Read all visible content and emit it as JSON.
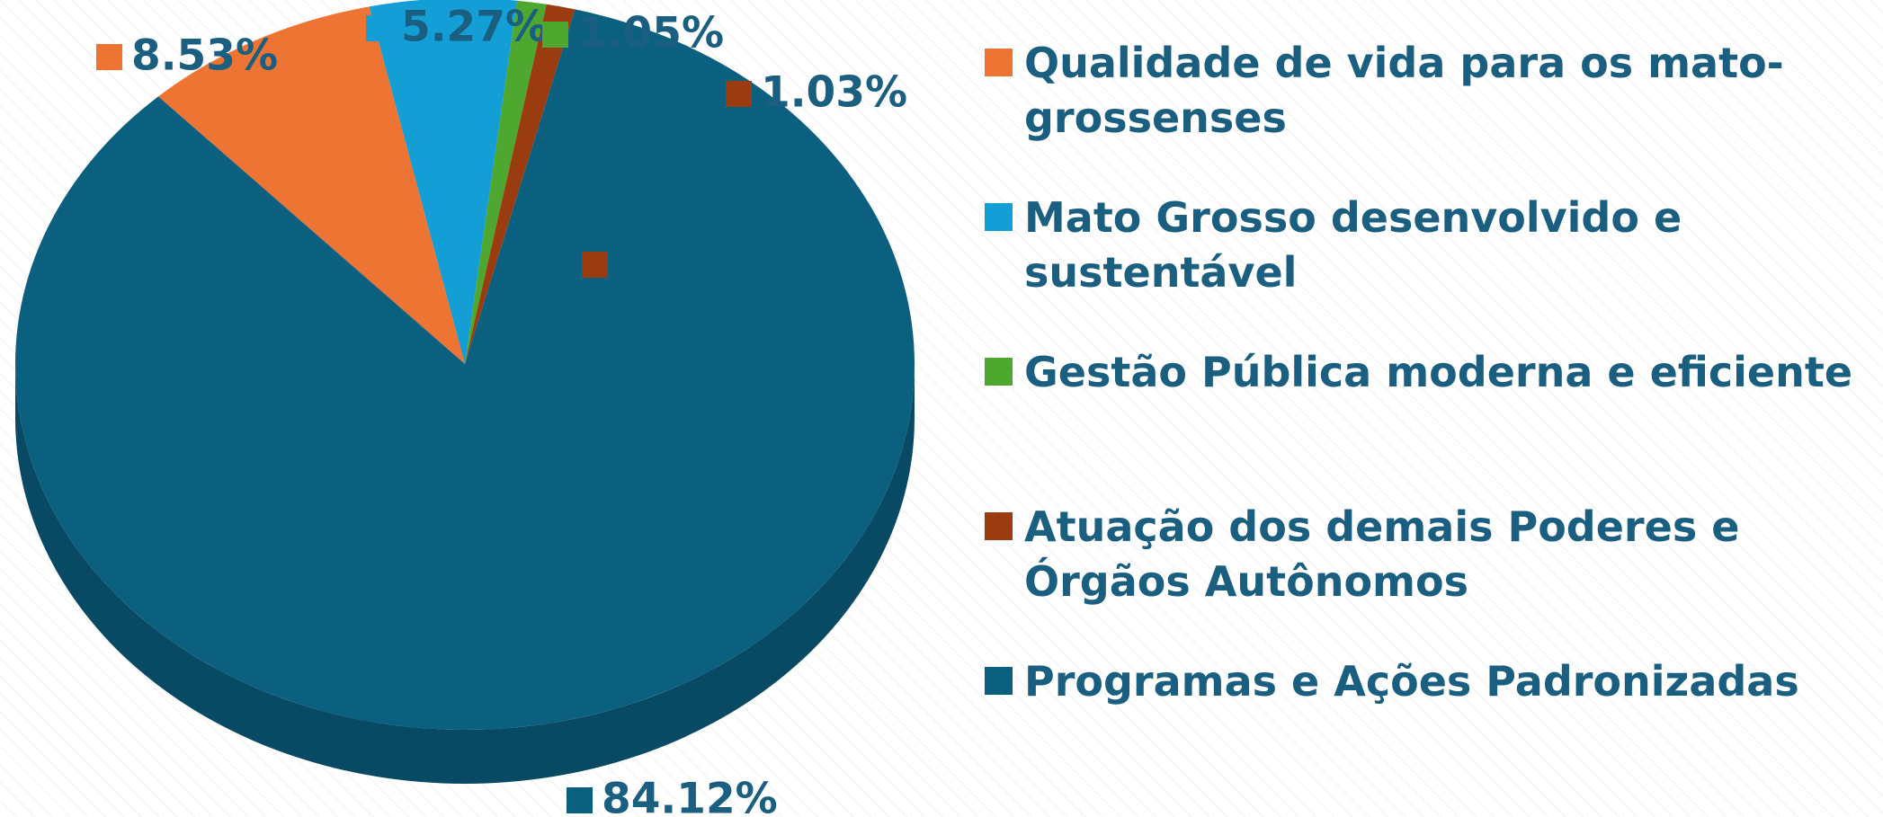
{
  "chart_data": {
    "type": "pie3d",
    "categories": [
      "Qualidade de vida para os mato-grossenses",
      "Mato Grosso desenvolvido e sustentável",
      "Gestão Pública moderna e eficiente",
      "Atuação dos demais Poderes e Órgãos Autônomos",
      "Programas e Ações Padronizadas"
    ],
    "values": [
      8.53,
      5.27,
      1.05,
      1.03,
      84.12
    ],
    "value_labels": [
      "8.53%",
      "5.27%",
      "1.05%",
      "1.03%",
      "84.12%"
    ],
    "colors": [
      "#ed7432",
      "#139fd6",
      "#4ea72e",
      "#9a3c10",
      "#0b5f7f"
    ],
    "legend": "right"
  }
}
